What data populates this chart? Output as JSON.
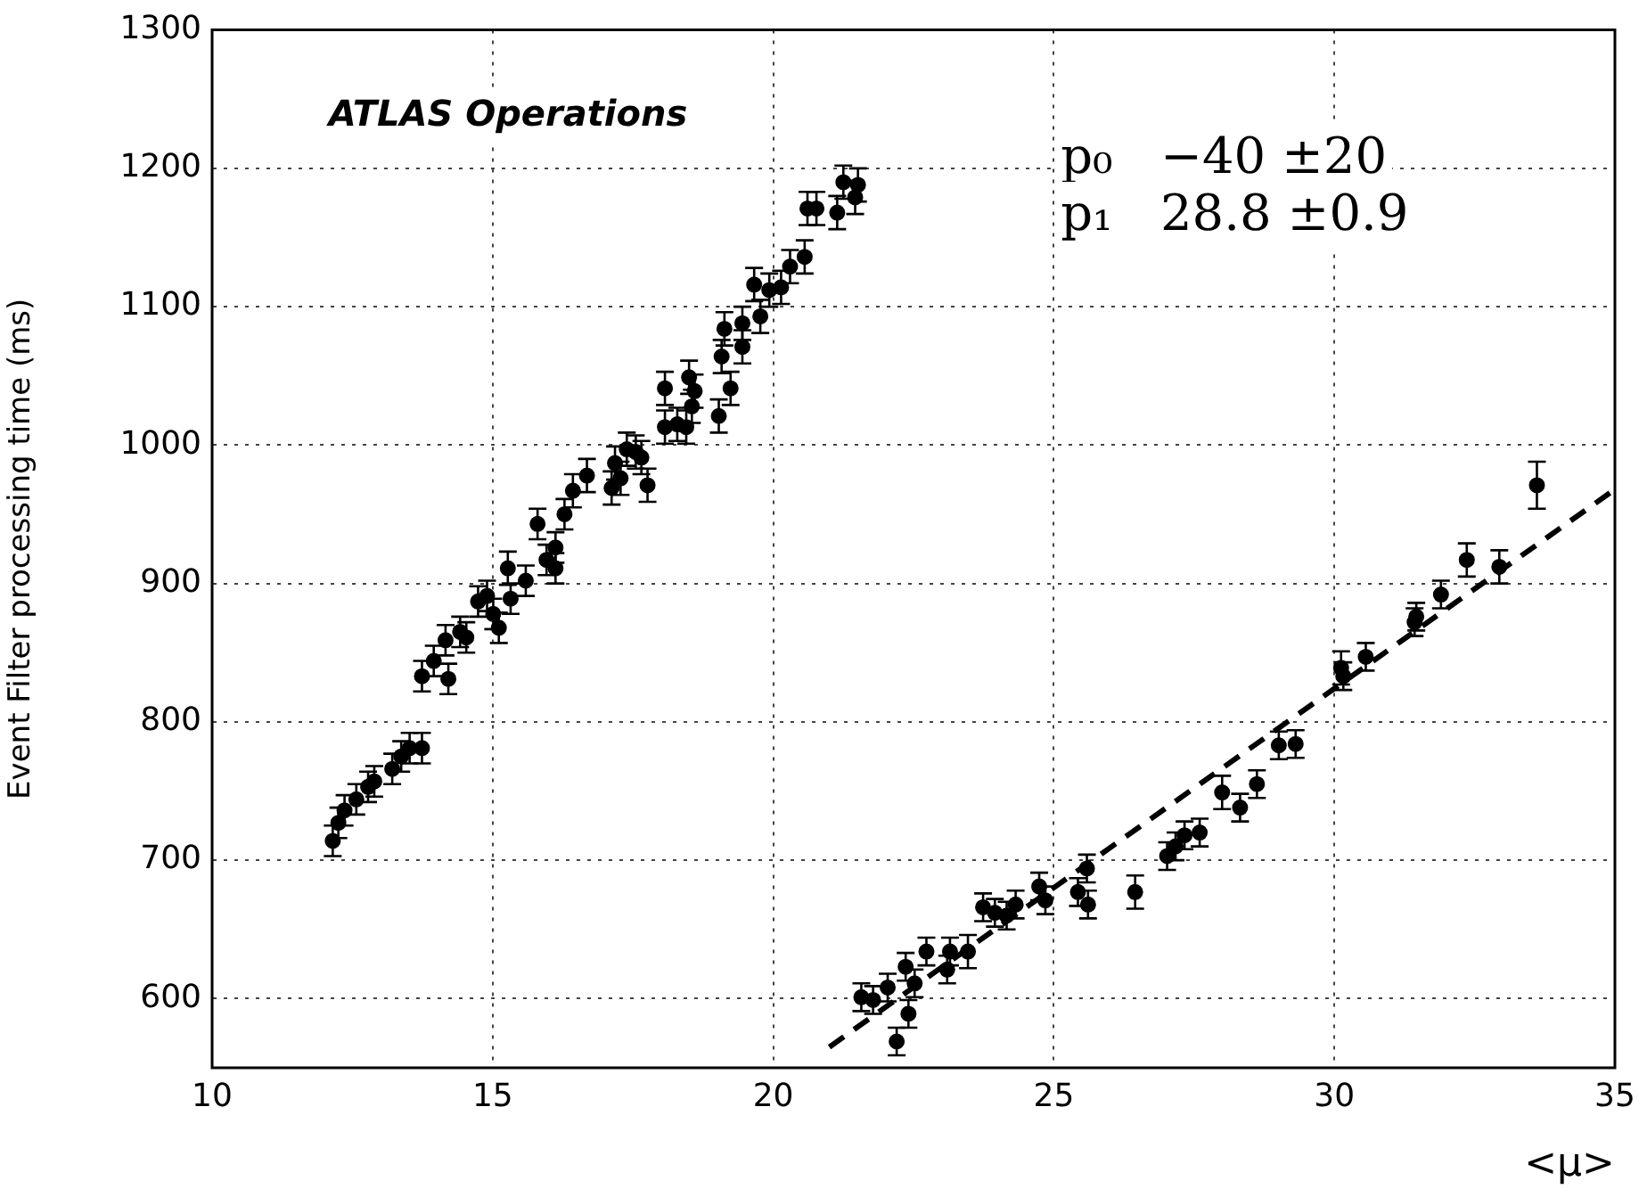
{
  "chart_data": {
    "type": "scatter",
    "xlabel": "<μ>",
    "ylabel": "Event Filter processing time (ms)",
    "xlim": [
      10,
      35
    ],
    "xticks": [
      10,
      15,
      20,
      25,
      30,
      35
    ],
    "ylim": [
      550,
      1300
    ],
    "yticks": [
      {
        "value": 550,
        "label": null
      },
      600,
      700,
      800,
      900,
      1000,
      1100,
      1200,
      1300
    ],
    "grid": true,
    "marker": "circle",
    "legend": false,
    "annotations": [
      "ATLAS Operations",
      "p₀   −40 ±20",
      "p₁   28.8 ±0.9"
    ],
    "series": [
      {
        "type": "scatter",
        "color": "#000000",
        "x": [
          12.15,
          12.25,
          12.36,
          12.57,
          12.78,
          12.89,
          13.21,
          13.37,
          13.52,
          13.74,
          13.74,
          13.95,
          14.21,
          14.16,
          14.42,
          14.53,
          14.74,
          14.9,
          15.01,
          15.11,
          15.27,
          15.32,
          15.59,
          15.8,
          15.96,
          16.12,
          16.12,
          16.28,
          16.43,
          16.68,
          17.12,
          17.18,
          17.28,
          17.39,
          17.55,
          17.65,
          17.76,
          18.07,
          18.07,
          18.29,
          18.45,
          18.5,
          18.6,
          18.55,
          19.03,
          19.08,
          19.24,
          19.13,
          19.45,
          19.45,
          19.77,
          19.66,
          19.93,
          20.14,
          20.3,
          20.56,
          20.61,
          20.77,
          21.14,
          21.25,
          21.46,
          21.51
        ],
        "values": [
          714,
          727,
          736,
          744,
          753,
          757,
          766,
          775,
          781,
          781,
          833,
          844,
          831,
          859,
          865,
          861,
          887,
          891,
          878,
          868,
          911,
          889,
          902,
          943,
          917,
          926,
          911,
          950,
          967,
          978,
          969,
          987,
          976,
          997,
          995,
          991,
          971,
          1041,
          1013,
          1015,
          1013,
          1049,
          1039,
          1028,
          1021,
          1064,
          1041,
          1084,
          1071,
          1088,
          1093,
          1116,
          1112,
          1114,
          1129,
          1136,
          1171,
          1171,
          1168,
          1190,
          1179,
          1188
        ],
        "errors": [
          11,
          11,
          11,
          11,
          11,
          11,
          11,
          11,
          11,
          11,
          11,
          11,
          11,
          11,
          11,
          11,
          11,
          11,
          11,
          11,
          12,
          11,
          11,
          11,
          11,
          11,
          11,
          11,
          12,
          12,
          12,
          12,
          12,
          12,
          12,
          12,
          12,
          12,
          12,
          12,
          12,
          12,
          12,
          12,
          12,
          12,
          12,
          12,
          12,
          12,
          12,
          12,
          12,
          12,
          12,
          12,
          12,
          12,
          12,
          12,
          12,
          12
        ]
      },
      {
        "type": "scatter",
        "color": "#000000",
        "x": [
          21.57,
          21.78,
          22.04,
          22.2,
          22.36,
          22.41,
          22.52,
          22.73,
          23.1,
          23.15,
          23.47,
          23.74,
          23.95,
          24.16,
          24.32,
          24.74,
          24.85,
          25.43,
          25.59,
          25.61,
          26.45,
          27.02,
          27.17,
          27.33,
          27.6,
          28.0,
          28.32,
          28.62,
          29.01,
          29.31,
          30.12,
          30.16,
          30.56,
          31.43,
          31.46,
          31.9,
          32.36,
          32.94,
          33.61
        ],
        "values": [
          601,
          599,
          608,
          569,
          623,
          589,
          611,
          634,
          621,
          634,
          634,
          666,
          662,
          660,
          668,
          681,
          671,
          677,
          694,
          668,
          677,
          703,
          710,
          718,
          720,
          749,
          738,
          755,
          783,
          784,
          839,
          833,
          847,
          872,
          876,
          892,
          917,
          912,
          971
        ],
        "errors": [
          10,
          10,
          10,
          10,
          10,
          10,
          10,
          10,
          10,
          10,
          12,
          10,
          10,
          10,
          10,
          10,
          10,
          10,
          10,
          10,
          12,
          10,
          10,
          10,
          10,
          12,
          10,
          10,
          10,
          10,
          12,
          10,
          10,
          10,
          10,
          10,
          12,
          12,
          17
        ]
      },
      {
        "type": "line",
        "color": "#000000",
        "line_style": "dashed",
        "marker": "none",
        "x": [
          21,
          35
        ],
        "values": [
          565,
          968
        ]
      }
    ]
  }
}
